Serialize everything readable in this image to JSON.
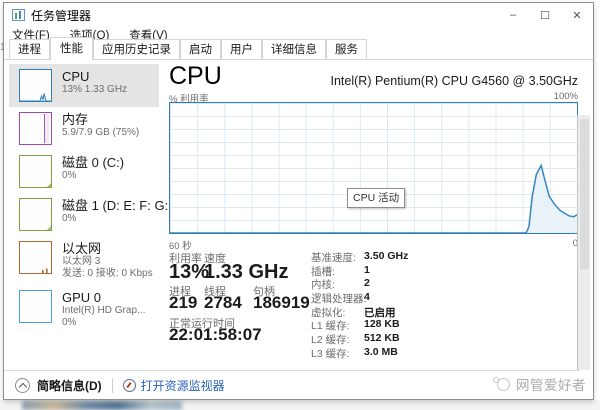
{
  "window": {
    "title": "任务管理器"
  },
  "window_controls": {
    "minimize": "–",
    "maximize": "☐",
    "close": "✕"
  },
  "menu": {
    "items": [
      "文件(F)",
      "选项(O)",
      "查看(V)"
    ]
  },
  "tabs": {
    "items": [
      "进程",
      "性能",
      "应用历史记录",
      "启动",
      "用户",
      "详细信息",
      "服务"
    ],
    "active_index": 1
  },
  "sidebar": {
    "items": [
      {
        "title": "CPU",
        "lines": [
          "13% 1.33 GHz"
        ],
        "color": "#2e7db6",
        "thumb": "cpu",
        "selected": true
      },
      {
        "title": "内存",
        "lines": [
          "5.9/7.9 GB (75%)"
        ],
        "color": "#9a4bab",
        "thumb": "mem",
        "selected": false
      },
      {
        "title": "磁盘 0 (C:)",
        "lines": [
          "0%"
        ],
        "color": "#7ba23f",
        "thumb": "disk",
        "selected": false
      },
      {
        "title": "磁盘 1 (D: E: F: G:",
        "lines": [
          "0%"
        ],
        "color": "#7ba23f",
        "thumb": "disk",
        "selected": false
      },
      {
        "title": "以太网",
        "lines": [
          "以太网 3",
          "发送: 0 接收: 0 Kbps"
        ],
        "color": "#b06a35",
        "thumb": "net",
        "selected": false
      },
      {
        "title": "GPU 0",
        "lines": [
          "Intel(R) HD Grap...",
          "0%"
        ],
        "color": "#4da1d8",
        "thumb": "gpu",
        "selected": false
      }
    ]
  },
  "main": {
    "title": "CPU",
    "subtitle": "Intel(R) Pentium(R) CPU G4560 @ 3.50GHz",
    "graph": {
      "ylabel": "% 利用率",
      "ymax": "100%",
      "xleft": "60 秒",
      "xright": "0",
      "tooltip": "CPU 活动",
      "line_color": "#3585bd",
      "fill_color": "#e9f2f9",
      "points": [
        [
          0,
          0
        ],
        [
          0.875,
          0
        ],
        [
          0.882,
          5
        ],
        [
          0.89,
          28
        ],
        [
          0.9,
          45
        ],
        [
          0.912,
          52
        ],
        [
          0.92,
          42
        ],
        [
          0.932,
          28
        ],
        [
          0.945,
          22
        ],
        [
          0.958,
          17.5
        ],
        [
          0.97,
          15
        ],
        [
          0.982,
          13
        ],
        [
          0.992,
          12.5
        ],
        [
          1,
          14
        ]
      ]
    },
    "stats_left": [
      {
        "label": "利用率",
        "value": "13%"
      },
      {
        "label": "速度",
        "value": "1.33 GHz"
      },
      {
        "label": "进程",
        "value": "219"
      },
      {
        "label": "线程",
        "value": "2784"
      },
      {
        "label": "句柄",
        "value": "186919"
      },
      {
        "label": "正常运行时间",
        "value": "22:01:58:07"
      }
    ],
    "stats_right": [
      {
        "label": "基准速度:",
        "value": "3.50 GHz"
      },
      {
        "label": "插槽:",
        "value": "1"
      },
      {
        "label": "内核:",
        "value": "2"
      },
      {
        "label": "逻辑处理器:",
        "value": "4"
      },
      {
        "label": "虚拟化:",
        "value": "已启用"
      },
      {
        "label": "L1 缓存:",
        "value": "128 KB"
      },
      {
        "label": "L2 缓存:",
        "value": "512 KB"
      },
      {
        "label": "L3 缓存:",
        "value": "3.0 MB"
      }
    ]
  },
  "footer": {
    "collapse_label": "简略信息(D)",
    "resmon_label": "打开资源监视器",
    "link_color": "#2864b8"
  },
  "watermark": {
    "text": "网管爱好者"
  },
  "artifact": {
    "digit": "1"
  }
}
